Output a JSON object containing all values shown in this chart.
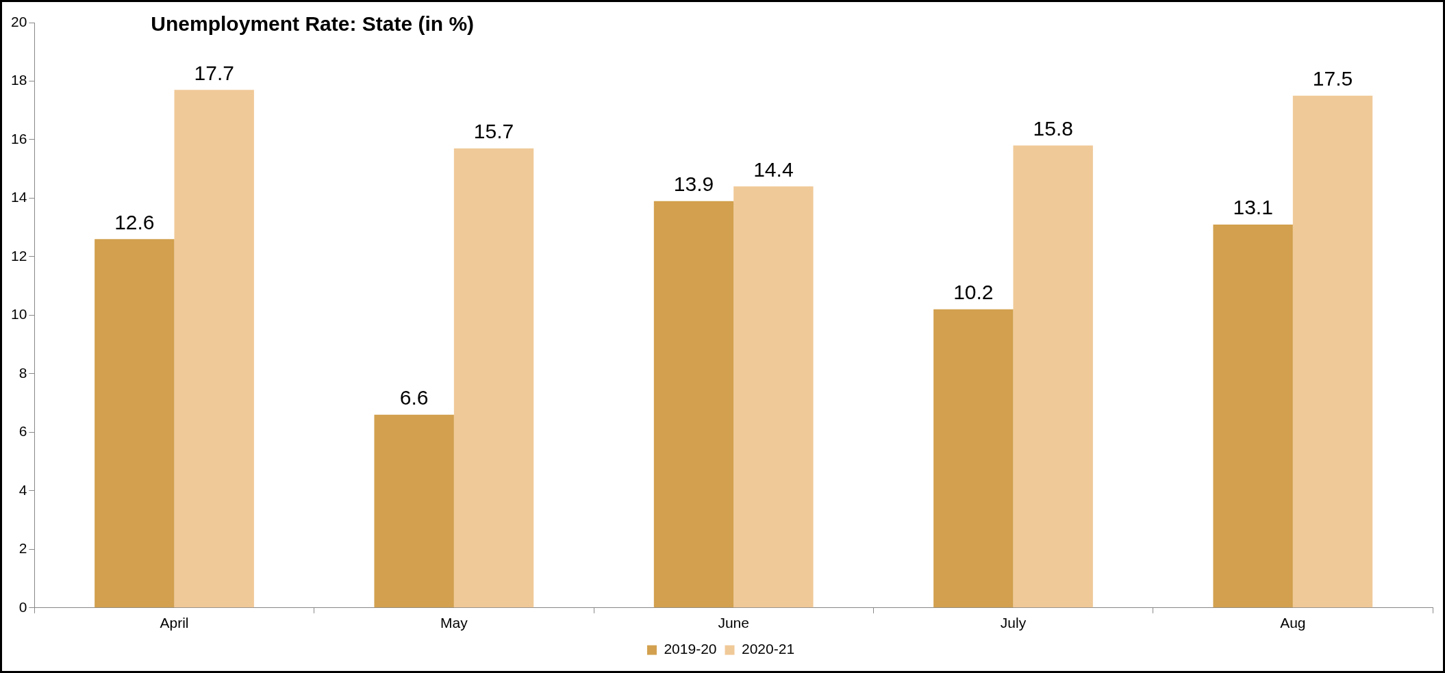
{
  "chart_data": {
    "type": "bar",
    "title": "Unemployment Rate: State (in %)",
    "categories": [
      "April",
      "May",
      "June",
      "July",
      "Aug"
    ],
    "series": [
      {
        "name": "2019-20",
        "color": "#d2a04e",
        "values": [
          12.6,
          6.6,
          13.9,
          10.2,
          13.1
        ]
      },
      {
        "name": "2020-21",
        "color": "#f0c998",
        "values": [
          17.7,
          15.7,
          14.4,
          15.8,
          17.5
        ]
      }
    ],
    "ylim": [
      0,
      20
    ],
    "yticks": [
      0,
      2,
      4,
      6,
      8,
      10,
      12,
      14,
      16,
      18,
      20
    ],
    "grid": false,
    "legend": "bottom",
    "data_labels": true
  }
}
